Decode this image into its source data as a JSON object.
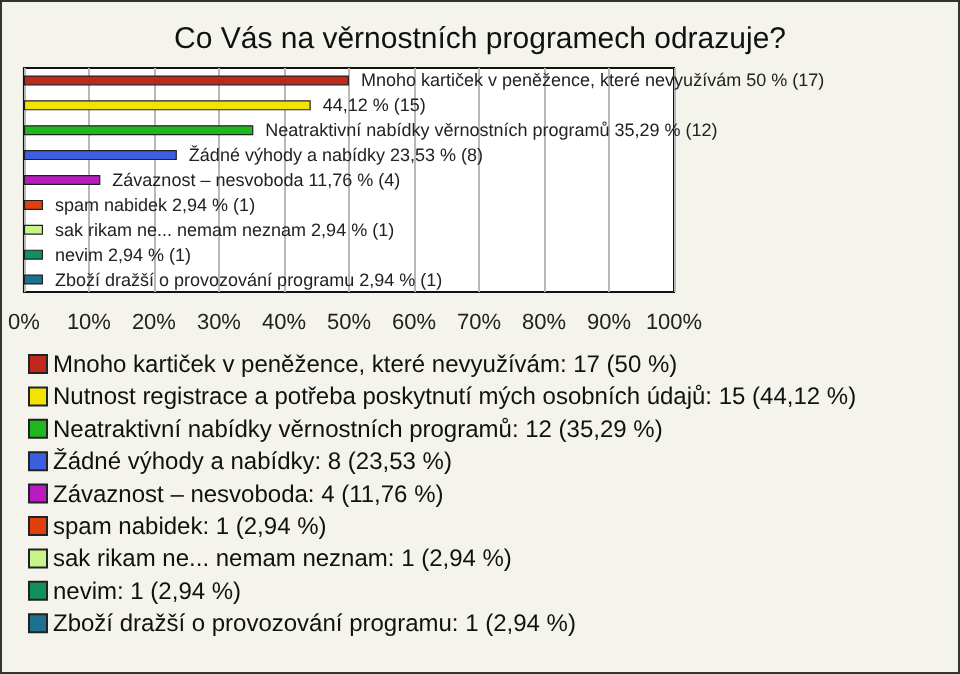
{
  "chart_data": {
    "type": "bar",
    "orientation": "horizontal",
    "title": "Co Vás na věrnostních programech odrazuje?",
    "categories": [
      null,
      null,
      null,
      null,
      null,
      null,
      null,
      null,
      null
    ],
    "series": [
      {
        "name": "Mnoho kartiček v peněžence, které nevyužívám: 17 (50 %)",
        "color": "#c0281c",
        "values": [
          50,
          null,
          null,
          null,
          null,
          null,
          null,
          null,
          null
        ],
        "value_labels": [
          "Mnoho kartiček v peněžence, které nevyužívám 50 % (17)",
          null,
          null,
          null,
          null,
          null,
          null,
          null,
          null
        ]
      },
      {
        "name": "Nutnost registrace a potřeba poskytnutí mých osobních údajů: 15 (44,12 %)",
        "color": "#f2e400",
        "values": [
          null,
          44.12,
          null,
          null,
          null,
          null,
          null,
          null,
          null
        ],
        "value_labels": [
          null,
          "44,12 % (15)",
          null,
          null,
          null,
          null,
          null,
          null,
          null
        ]
      },
      {
        "name": "Neatraktivní nabídky věrnostních programů: 12 (35,29 %)",
        "color": "#1fb81f",
        "values": [
          null,
          null,
          35.29,
          null,
          null,
          null,
          null,
          null,
          null
        ],
        "value_labels": [
          null,
          null,
          "Neatraktivní nabídky věrnostních programů 35,29 % (12)",
          null,
          null,
          null,
          null,
          null,
          null
        ]
      },
      {
        "name": "Žádné výhody a nabídky: 8 (23,53 %)",
        "color": "#3c5fe0",
        "values": [
          null,
          null,
          null,
          23.53,
          null,
          null,
          null,
          null,
          null
        ],
        "value_labels": [
          null,
          null,
          null,
          "Žádné výhody a nabídky 23,53 % (8)",
          null,
          null,
          null,
          null,
          null
        ]
      },
      {
        "name": "Závaznost – nesvoboda: 4 (11,76 %)",
        "color": "#b81cc0",
        "values": [
          null,
          null,
          null,
          null,
          11.76,
          null,
          null,
          null,
          null
        ],
        "value_labels": [
          null,
          null,
          null,
          null,
          "Závaznost – nesvoboda 11,76 % (4)",
          null,
          null,
          null,
          null
        ]
      },
      {
        "name": "spam nabidek: 1 (2,94 %)",
        "color": "#e0400c",
        "values": [
          null,
          null,
          null,
          null,
          null,
          2.94,
          null,
          null,
          null
        ],
        "value_labels": [
          null,
          null,
          null,
          null,
          null,
          "spam nabidek 2,94 % (1)",
          null,
          null,
          null
        ]
      },
      {
        "name": "sak rikam ne... nemam neznam: 1 (2,94 %)",
        "color": "#c8f58a",
        "values": [
          null,
          null,
          null,
          null,
          null,
          null,
          2.94,
          null,
          null
        ],
        "value_labels": [
          null,
          null,
          null,
          null,
          null,
          null,
          "sak rikam ne... nemam neznam 2,94 % (1)",
          null,
          null
        ]
      },
      {
        "name": "nevim: 1 (2,94 %)",
        "color": "#11905c",
        "values": [
          null,
          null,
          null,
          null,
          null,
          null,
          null,
          2.94,
          null
        ],
        "value_labels": [
          null,
          null,
          null,
          null,
          null,
          null,
          null,
          "nevim 2,94 % (1)",
          null
        ]
      },
      {
        "name": "Zboží dražší o provozování programu: 1 (2,94 %)",
        "color": "#1f7090",
        "values": [
          null,
          null,
          null,
          null,
          null,
          null,
          null,
          null,
          2.94
        ],
        "value_labels": [
          null,
          null,
          null,
          null,
          null,
          null,
          null,
          null,
          "Zboží dražší o provozování programu 2,94 % (1)"
        ]
      }
    ],
    "xlim": [
      0,
      100
    ],
    "xticks": [
      {
        "value": 0,
        "label": "0%"
      },
      {
        "value": 10,
        "label": "10%"
      },
      {
        "value": 20,
        "label": "20%"
      },
      {
        "value": 30,
        "label": "30%"
      },
      {
        "value": 40,
        "label": "40%"
      },
      {
        "value": 50,
        "label": "50%"
      },
      {
        "value": 60,
        "label": "60%"
      },
      {
        "value": 70,
        "label": "70%"
      },
      {
        "value": 80,
        "label": "80%"
      },
      {
        "value": 90,
        "label": "90%"
      },
      {
        "value": 100,
        "label": "100%"
      }
    ],
    "tick_labels": "x",
    "grid": "x",
    "legend": "bottom"
  }
}
